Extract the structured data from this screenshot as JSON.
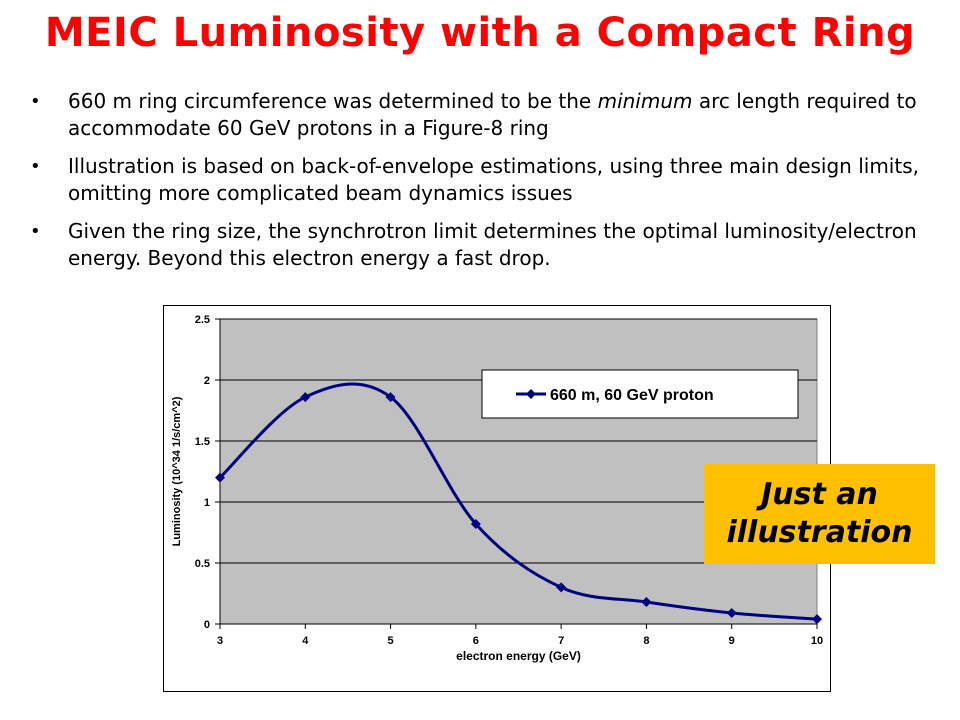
{
  "slide": {
    "title": "MEIC Luminosity with a Compact Ring",
    "bullets": [
      {
        "marker": "•",
        "text_before": "660 m ring circumference was determined to be the ",
        "emphasis": "minimum",
        "text_after": " arc length required to accommodate 60 GeV protons in a Figure-8 ring"
      },
      {
        "marker": "•",
        "text": "Illustration is based on back-of-envelope estimations, using three main design limits, omitting more complicated beam dynamics issues"
      },
      {
        "marker": "•",
        "text": "Given the ring size, the synchrotron limit determines the optimal luminosity/electron energy. Beyond this electron energy a fast drop."
      }
    ],
    "badge": {
      "line1": "Just an",
      "line2": "illustration",
      "color": "#ffc000"
    }
  },
  "chart_data": {
    "type": "line",
    "xlabel": "electron energy (GeV)",
    "ylabel": "Luminosity  (10^34 1/s/cm^2)",
    "xlim": [
      3,
      10
    ],
    "ylim": [
      0,
      2.5
    ],
    "x_ticks": [
      "3",
      "4",
      "5",
      "6",
      "7",
      "8",
      "9",
      "10"
    ],
    "y_ticks": [
      "0",
      "0.5",
      "1",
      "1.5",
      "2",
      "2.5"
    ],
    "grid": true,
    "smoothed": true,
    "legend_position": "top-right",
    "plot_background": "#c0c0c0",
    "series": [
      {
        "name": "660 m, 60 GeV proton",
        "color": "#000080",
        "marker": "diamond",
        "x": [
          3,
          4,
          5,
          6,
          7,
          8,
          9,
          10
        ],
        "y": [
          1.2,
          1.86,
          1.86,
          0.82,
          0.3,
          0.18,
          0.09,
          0.04
        ]
      }
    ]
  }
}
